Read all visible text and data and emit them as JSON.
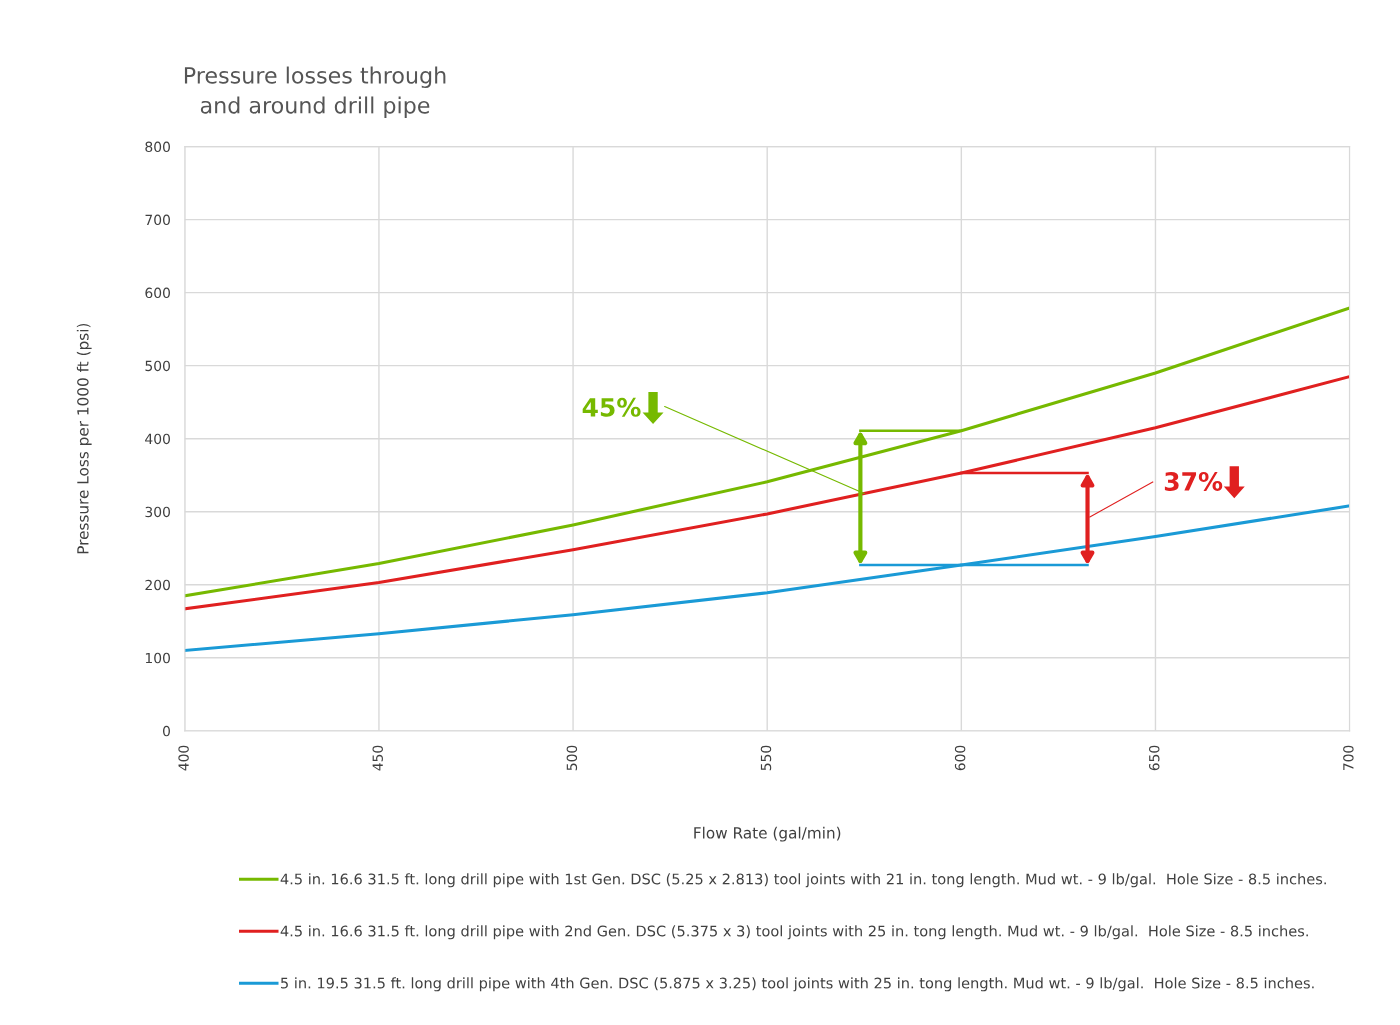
{
  "chart_data": {
    "type": "line",
    "title": "Pressure losses through\nand around drill pipe",
    "xlabel": "Flow Rate (gal/min)",
    "ylabel": "Pressure Loss per 1000 ft (psi)",
    "x": [
      400,
      450,
      500,
      550,
      600,
      650,
      700
    ],
    "series": [
      {
        "name": "4.5 in. 16.6 31.5 ft. long drill pipe with 1st Gen. DSC (5.25 x 2.813) tool joints with 21 in. tong length. Mud wt. - 9 lb/gal.  Hole Size - 8.5 inches.",
        "color": "#76b900",
        "values": [
          185,
          229,
          282,
          341,
          411,
          490,
          579
        ]
      },
      {
        "name": "4.5 in. 16.6 31.5 ft. long drill pipe with 2nd Gen. DSC (5.375 x 3) tool joints with 25 in. tong length. Mud wt. - 9 lb/gal.  Hole Size - 8.5 inches.",
        "color": "#e02020",
        "values": [
          167,
          203,
          248,
          297,
          353,
          415,
          485
        ]
      },
      {
        "name": "5 in. 19.5 31.5 ft. long drill pipe with 4th Gen. DSC (5.875 x 3.25) tool joints with 25 in. tong length. Mud wt. - 9 lb/gal.  Hole Size - 8.5 inches.",
        "color": "#1a9ad6",
        "values": [
          110,
          133,
          159,
          189,
          227,
          266,
          308
        ]
      }
    ],
    "xlim": [
      400,
      700
    ],
    "xticks": [
      400,
      450,
      500,
      550,
      600,
      650,
      700
    ],
    "ylim": [
      0,
      800
    ],
    "yticks": [
      0,
      100,
      200,
      300,
      400,
      500,
      600,
      700,
      800
    ],
    "grid": true,
    "legend": "bottom",
    "marker": "none",
    "line_style": "solid",
    "annotations": [
      {
        "text": "45%",
        "x": 575,
        "y": 325
      },
      "37%"
    ]
  }
}
